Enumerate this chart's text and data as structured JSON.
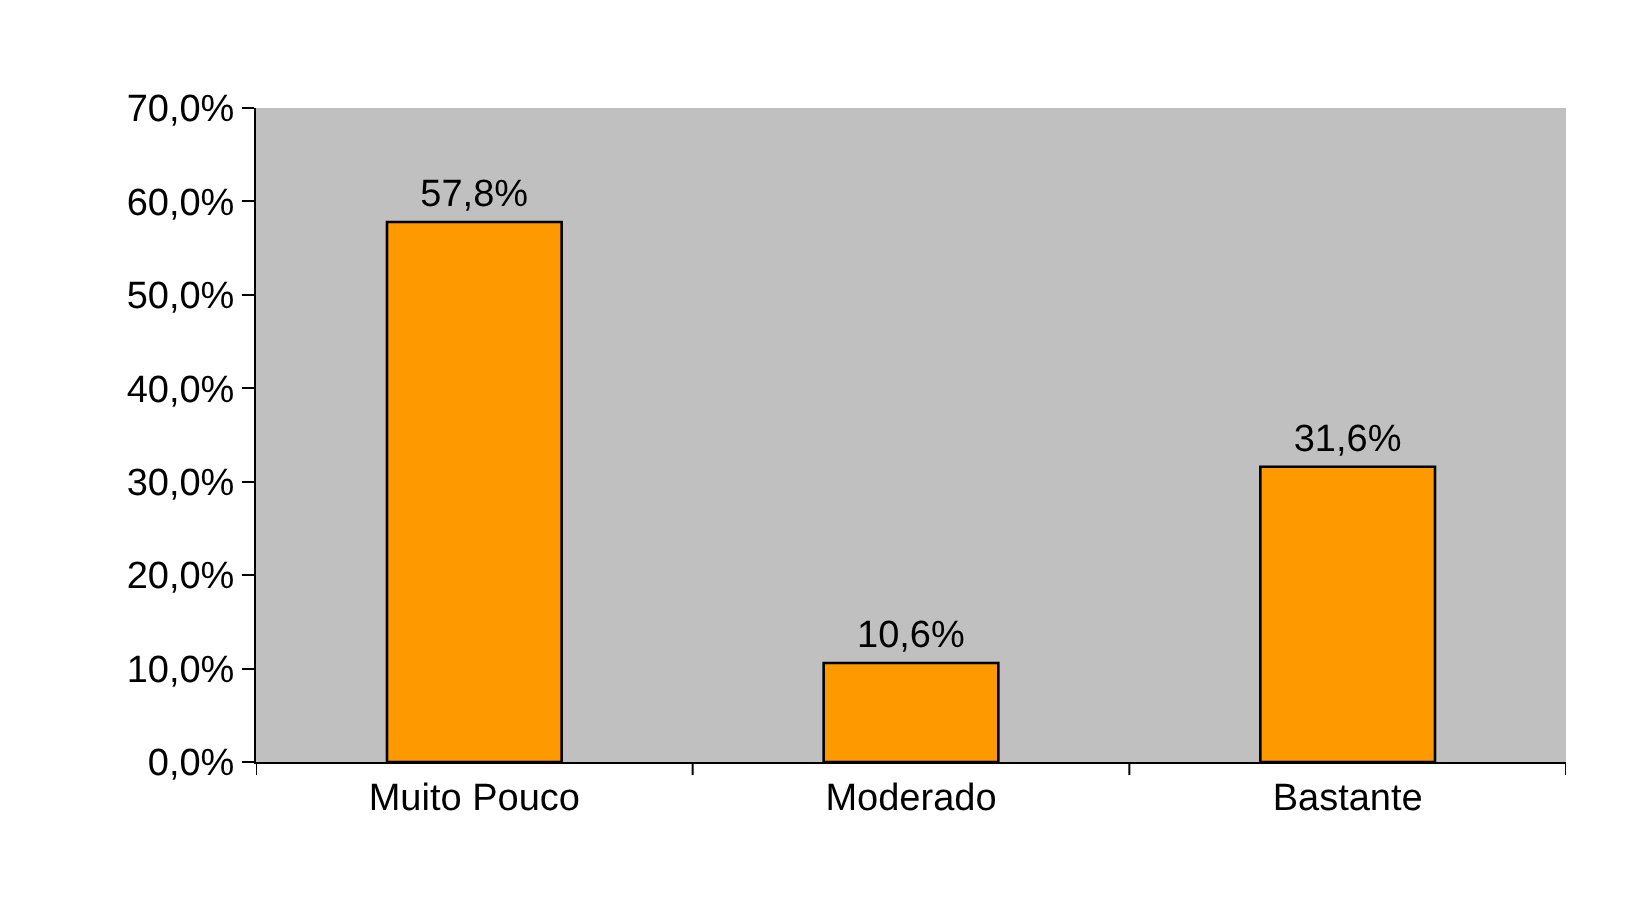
{
  "chart_data": {
    "type": "bar",
    "categories": [
      "Muito Pouco",
      "Moderado",
      "Bastante"
    ],
    "values": [
      57.8,
      10.6,
      31.6
    ],
    "value_labels": [
      "57,8%",
      "10,6%",
      "31,6%"
    ],
    "color": "#ff9900",
    "ylim": [
      0,
      70
    ],
    "yticks": [
      {
        "value": 0,
        "label": "0,0%"
      },
      {
        "value": 10,
        "label": "10,0%"
      },
      {
        "value": 20,
        "label": "20,0%"
      },
      {
        "value": 30,
        "label": "30,0%"
      },
      {
        "value": 40,
        "label": "40,0%"
      },
      {
        "value": 50,
        "label": "50,0%"
      },
      {
        "value": 60,
        "label": "60,0%"
      },
      {
        "value": 70,
        "label": "70,0%"
      }
    ],
    "grid": false,
    "legend": false
  }
}
